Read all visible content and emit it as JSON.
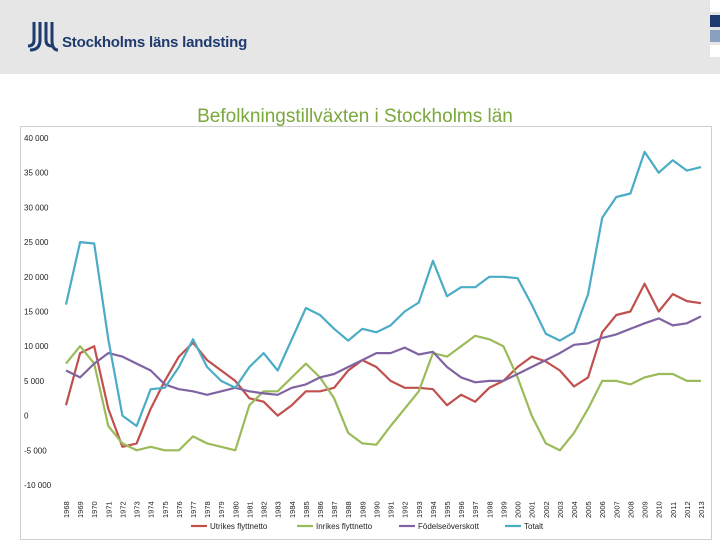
{
  "header": {
    "brand": "Stockholms läns landsting",
    "logo_name": "sll-logo",
    "square_colors": [
      "#ffffff",
      "#1e3a6e",
      "#8aa0c0",
      "#ffffff"
    ]
  },
  "chart_data": {
    "type": "line",
    "title": "Befolkningstillväxten i Stockholms län",
    "xlabel": "",
    "ylabel": "",
    "ylim": [
      -10000,
      40000
    ],
    "yticks": [
      40000,
      35000,
      30000,
      25000,
      20000,
      15000,
      10000,
      5000,
      0,
      -5000,
      -10000
    ],
    "ytick_labels": [
      "40 000",
      "35 000",
      "30 000",
      "25 000",
      "20 000",
      "15 000",
      "10 000",
      "5 000",
      "0",
      "-5 000",
      "-10 000"
    ],
    "categories": [
      "1968",
      "1969",
      "1970",
      "1971",
      "1972",
      "1973",
      "1974",
      "1975",
      "1976",
      "1977",
      "1978",
      "1979",
      "1980",
      "1981",
      "1982",
      "1983",
      "1984",
      "1985",
      "1986",
      "1987",
      "1988",
      "1989",
      "1990",
      "1991",
      "1992",
      "1993",
      "1994",
      "1995",
      "1996",
      "1997",
      "1998",
      "1999",
      "2000",
      "2001",
      "2002",
      "2003",
      "2004",
      "2005",
      "2006",
      "2007",
      "2008",
      "2009",
      "2010",
      "2011",
      "2012",
      "2013"
    ],
    "legend_position": "bottom",
    "series": [
      {
        "name": "Utrikes flyttnetto",
        "color": "#c0504d",
        "values": [
          1500,
          9000,
          10000,
          1000,
          -4500,
          -4000,
          1000,
          5000,
          8500,
          10500,
          8000,
          6500,
          5000,
          2500,
          2000,
          0,
          1500,
          3500,
          3500,
          4000,
          6500,
          8000,
          7000,
          5000,
          4000,
          4000,
          3800,
          1500,
          3000,
          2000,
          4000,
          5000,
          7000,
          8500,
          7800,
          6500,
          4200,
          5500,
          12000,
          14500,
          15000,
          19000,
          15000,
          17500,
          16500,
          16200
        ]
      },
      {
        "name": "Inrikes flyttnetto",
        "color": "#9bbb59",
        "values": [
          7500,
          10000,
          7500,
          -1500,
          -4000,
          -5000,
          -4500,
          -5000,
          -5000,
          -3000,
          -4000,
          -4500,
          -5000,
          1500,
          3500,
          3500,
          5500,
          7500,
          5500,
          2500,
          -2500,
          -4000,
          -4200,
          -1500,
          1000,
          3500,
          9000,
          8500,
          10000,
          11500,
          11000,
          10000,
          5500,
          0,
          -4000,
          -5000,
          -2500,
          1000,
          5000,
          5000,
          4500,
          5500,
          6000,
          6000,
          5000,
          5000
        ]
      },
      {
        "name": "Födelseöverskott",
        "color": "#8064a2",
        "values": [
          6500,
          5500,
          7500,
          9000,
          8500,
          7500,
          6500,
          4500,
          3800,
          3500,
          3000,
          3500,
          4000,
          3500,
          3200,
          3000,
          4000,
          4500,
          5500,
          6000,
          7000,
          8000,
          9000,
          9000,
          9800,
          8800,
          9200,
          7000,
          5500,
          4800,
          5000,
          5000,
          6000,
          7000,
          8000,
          9000,
          10200,
          10400,
          11200,
          11700,
          12500,
          13300,
          14000,
          13000,
          13300,
          14300
        ]
      },
      {
        "name": "Totalt",
        "color": "#4bacc6",
        "values": [
          16000,
          25000,
          24800,
          11000,
          0,
          -1500,
          3800,
          4000,
          7000,
          11000,
          7000,
          5000,
          4000,
          7000,
          9000,
          6500,
          11000,
          15500,
          14500,
          12500,
          10800,
          12500,
          12000,
          13000,
          15000,
          16300,
          22300,
          17200,
          18500,
          18500,
          20000,
          20000,
          19800,
          16000,
          11800,
          10800,
          12000,
          17500,
          28500,
          31500,
          32000,
          38000,
          35000,
          36800,
          35300,
          35800
        ]
      }
    ]
  }
}
